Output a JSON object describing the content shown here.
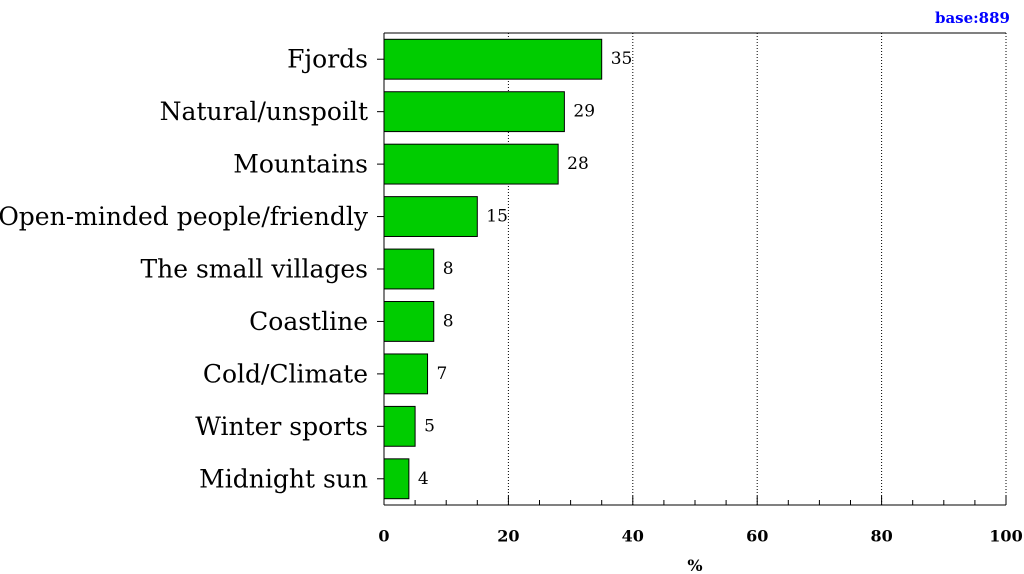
{
  "chart_data": {
    "type": "bar",
    "orientation": "horizontal",
    "categories": [
      "Fjords",
      "Natural/unspoilt",
      "Mountains",
      "Open-minded people/friendly",
      "The small villages",
      "Coastline",
      "Cold/Climate",
      "Winter sports",
      "Midnight sun"
    ],
    "values": [
      35,
      29,
      28,
      15,
      8,
      8,
      7,
      5,
      4
    ],
    "value_labels": [
      "35",
      "29",
      "28",
      "15",
      "8",
      "8",
      "7",
      "5",
      "4"
    ],
    "xlabel": "%",
    "xlim": [
      0,
      100
    ],
    "xticks": [
      0,
      20,
      40,
      60,
      80,
      100
    ],
    "xtick_labels": [
      "0",
      "20",
      "40",
      "60",
      "80",
      "100"
    ],
    "grid": "vertical dotted",
    "annotation": "base:889",
    "colors": {
      "bar_fill": "#00cc00",
      "bar_stroke": "#000000",
      "annotation": "#0000ff"
    }
  }
}
